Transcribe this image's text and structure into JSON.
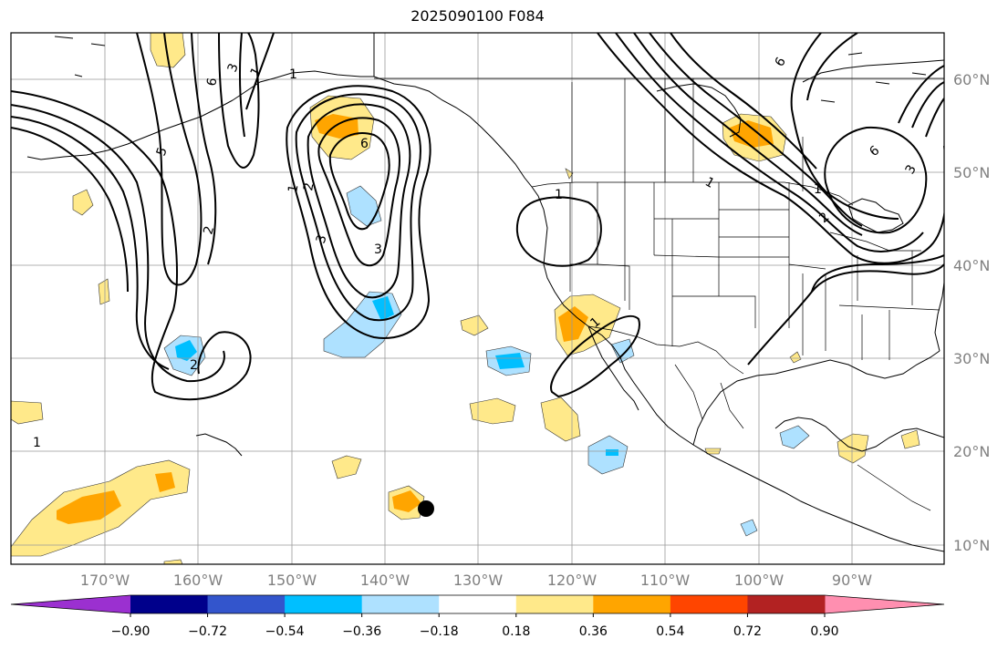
{
  "title": "2025090100 F084",
  "lat_labels": [
    "60°N",
    "50°N",
    "40°N",
    "30°N",
    "20°N",
    "10°N"
  ],
  "lon_labels": [
    "170°W",
    "160°W",
    "150°W",
    "140°W",
    "130°W",
    "120°W",
    "110°W",
    "100°W",
    "90°W"
  ],
  "colorbar": {
    "colors": [
      "#9b30d0",
      "#00008b",
      "#3355cc",
      "#00bfff",
      "#aee1ff",
      "#ffffff",
      "#ffe98a",
      "#ffa500",
      "#ff4500",
      "#b22222",
      "#ff8fb0"
    ],
    "tick_labels": [
      "−0.90",
      "−0.72",
      "−0.54",
      "−0.36",
      "−0.18",
      "0.18",
      "0.36",
      "0.54",
      "0.72",
      "0.90"
    ]
  },
  "contour_labels": [
    "3",
    "6",
    "5",
    "2",
    "1",
    "2",
    "3",
    "3",
    "1",
    "2",
    "1",
    "1",
    "6",
    "1",
    "6",
    "3",
    "6",
    "1",
    "2",
    "1",
    "1"
  ]
}
